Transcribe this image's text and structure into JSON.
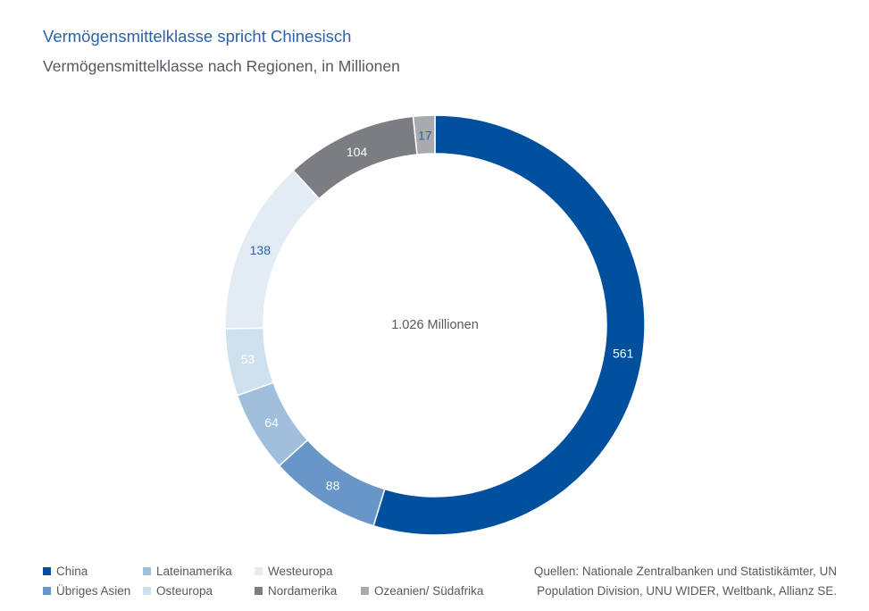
{
  "title": "Vermögensmittelklasse spricht Chinesisch",
  "subtitle": "Vermögensmittelklasse nach Regionen, in Millionen",
  "chart_data": {
    "type": "pie",
    "variant": "donut",
    "center_label": "1.026 Millionen",
    "series": [
      {
        "name": "China",
        "value": 561,
        "color": "#00509e",
        "label_color": "#ffffff"
      },
      {
        "name": "Übriges Asien",
        "value": 88,
        "color": "#6897c7",
        "label_color": "#ffffff"
      },
      {
        "name": "Lateinamerika",
        "value": 64,
        "color": "#9fbfdd",
        "label_color": "#ffffff"
      },
      {
        "name": "Osteuropa",
        "value": 53,
        "color": "#cfe0ee",
        "label_color": "#ffffff"
      },
      {
        "name": "Westeuropa",
        "value": 138,
        "color": "#e3ecf5",
        "label_color": "#2b62a8"
      },
      {
        "name": "Nordamerika",
        "value": 104,
        "color": "#7b7d81",
        "label_color": "#ffffff"
      },
      {
        "name": "Ozeanien/ Südafrika",
        "value": 17,
        "color": "#a8aaad",
        "label_color": "#2b62a8"
      }
    ]
  },
  "legend": {
    "rows": [
      [
        {
          "label": "China",
          "color": "#00509e"
        },
        {
          "label": "Lateinamerika",
          "color": "#9fbfdd"
        },
        {
          "label": "Westeuropa",
          "color": "#e3ecf5"
        }
      ],
      [
        {
          "label": "Übriges Asien",
          "color": "#6897c7"
        },
        {
          "label": "Osteuropa",
          "color": "#cfe0ee"
        },
        {
          "label": "Nordamerika",
          "color": "#7b7d81"
        },
        {
          "label": "Ozeanien/ Südafrika",
          "color": "#a8aaad"
        }
      ]
    ]
  },
  "source": {
    "line1": "Quellen: Nationale Zentralbanken und Statistikämter, UN",
    "line2": "Population Division, UNU WIDER, Weltbank, Allianz SE."
  }
}
